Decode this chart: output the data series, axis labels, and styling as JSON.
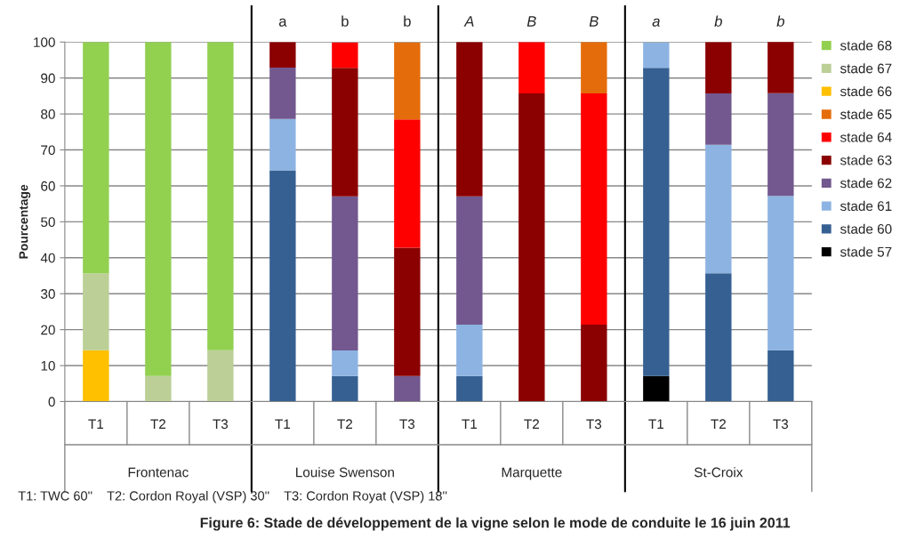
{
  "chart_data": {
    "type": "bar",
    "stacked": true,
    "title": "Figure 6: Stade de développement de la vigne selon le mode de conduite le 16 juin 2011",
    "ylabel": "Pourcentage",
    "categories": [
      "T1",
      "T2",
      "T3",
      "T1",
      "T2",
      "T3",
      "T1",
      "T2",
      "T3",
      "T1",
      "T2",
      "T3"
    ],
    "series": [
      {
        "name": "stade 57",
        "color": "#000000",
        "values": [
          0,
          0,
          0,
          0,
          0,
          0,
          0,
          0,
          0,
          7.1,
          0,
          0
        ]
      },
      {
        "name": "stade 60",
        "color": "#366092",
        "values": [
          0,
          0,
          0,
          64.3,
          7.1,
          0,
          7.1,
          0,
          0,
          85.7,
          35.7,
          14.3
        ]
      },
      {
        "name": "stade 61",
        "color": "#8db3e2",
        "values": [
          0,
          0,
          0,
          14.3,
          7.1,
          0,
          14.3,
          0,
          0,
          7.1,
          35.7,
          42.9
        ]
      },
      {
        "name": "stade 62",
        "color": "#72588e",
        "values": [
          0,
          0,
          0,
          14.3,
          42.9,
          7.1,
          35.7,
          0,
          0,
          0,
          14.3,
          28.6
        ]
      },
      {
        "name": "stade 63",
        "color": "#8b0000",
        "values": [
          0,
          0,
          0,
          7.1,
          35.7,
          35.7,
          42.9,
          85.7,
          21.4,
          0,
          14.3,
          14.3
        ]
      },
      {
        "name": "stade 64",
        "color": "#ff0000",
        "values": [
          0,
          0,
          0,
          0,
          7.1,
          35.7,
          0,
          14.3,
          64.3,
          0,
          0,
          0
        ]
      },
      {
        "name": "stade 65",
        "color": "#e46c0a",
        "values": [
          0,
          0,
          0,
          0,
          0,
          21.4,
          0,
          0,
          14.3,
          0,
          0,
          0
        ]
      },
      {
        "name": "stade 66",
        "color": "#ffc000",
        "values": [
          14.3,
          0,
          0,
          0,
          0,
          0,
          0,
          0,
          0,
          0,
          0,
          0
        ]
      },
      {
        "name": "stade 67",
        "color": "#bbcf97",
        "values": [
          21.4,
          7.1,
          14.3,
          0,
          0,
          0,
          0,
          0,
          0,
          0,
          0,
          0
        ]
      },
      {
        "name": "stade 68",
        "color": "#92d050",
        "values": [
          64.3,
          92.9,
          85.7,
          0,
          0,
          0,
          0,
          0,
          0,
          0,
          0,
          0
        ]
      }
    ],
    "ylim": [
      0,
      100
    ],
    "yticks": [
      0,
      10,
      20,
      30,
      40,
      50,
      60,
      70,
      80,
      90,
      100
    ],
    "grid": "y",
    "legend": "right",
    "annotations": [
      "a",
      "b",
      "b",
      "A",
      "B",
      "B",
      "a",
      "b",
      "b",
      "Frontenac",
      "Louise Swenson",
      "Marquette",
      "St-Croix",
      "T1: TWC 60''    T2: Cordon Royal (VSP) 30''    T3: Cordon Royat (VSP) 18''"
    ]
  }
}
